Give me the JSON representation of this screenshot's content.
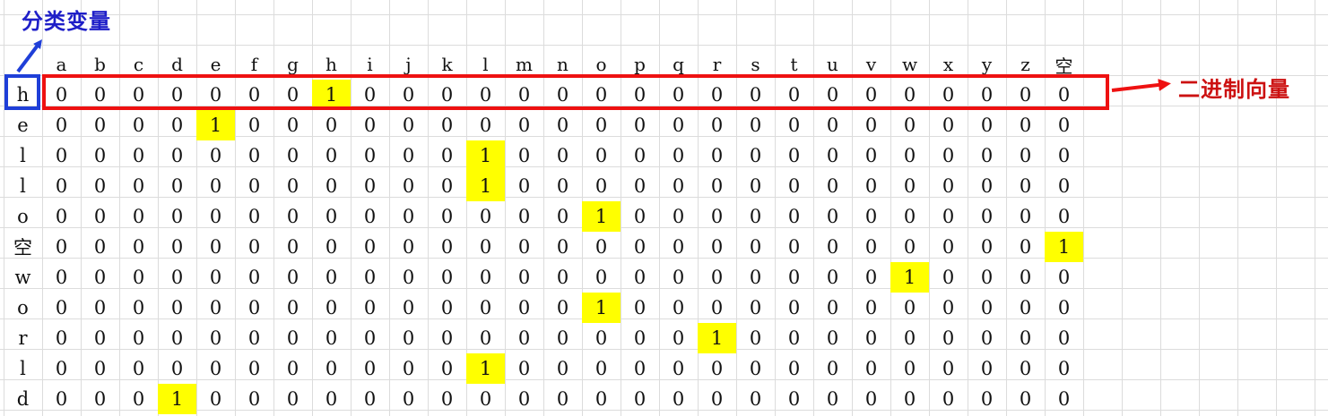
{
  "labels": {
    "categorical_variable": "分类变量",
    "binary_vector": "二进制向量"
  },
  "columns": [
    "a",
    "b",
    "c",
    "d",
    "e",
    "f",
    "g",
    "h",
    "i",
    "j",
    "k",
    "l",
    "m",
    "n",
    "o",
    "p",
    "q",
    "r",
    "s",
    "t",
    "u",
    "v",
    "w",
    "x",
    "y",
    "z",
    "空"
  ],
  "rows": [
    {
      "label": "h",
      "hot": 7
    },
    {
      "label": "e",
      "hot": 4
    },
    {
      "label": "l",
      "hot": 11
    },
    {
      "label": "l",
      "hot": 11
    },
    {
      "label": "o",
      "hot": 14
    },
    {
      "label": "空",
      "hot": 26
    },
    {
      "label": "w",
      "hot": 22
    },
    {
      "label": "o",
      "hot": 14
    },
    {
      "label": "r",
      "hot": 17
    },
    {
      "label": "l",
      "hot": 11
    },
    {
      "label": "d",
      "hot": 3
    }
  ],
  "cell_values": {
    "on": "1",
    "off": "0"
  },
  "colors": {
    "highlight": "#ffff00",
    "red_box": "#ee1111",
    "blue_box": "#1f3fd8",
    "grid": "#dcdcdc"
  }
}
